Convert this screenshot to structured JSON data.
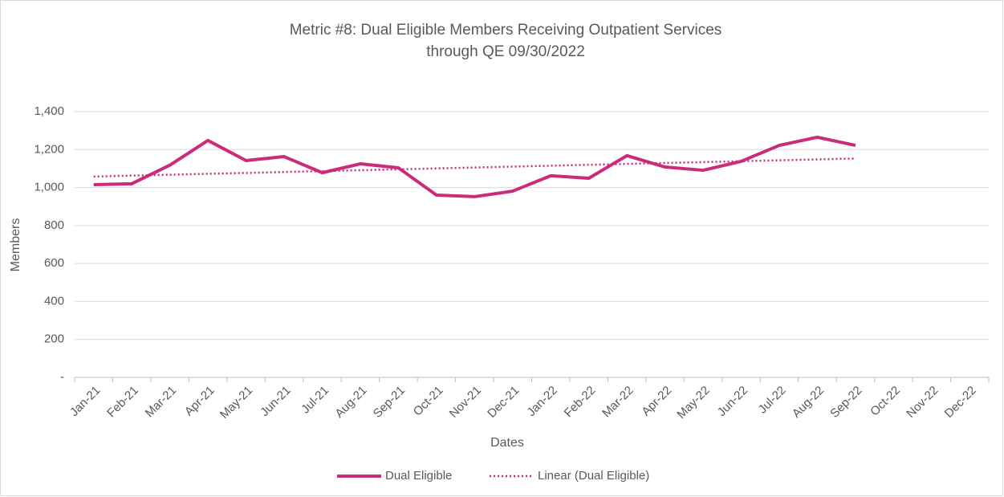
{
  "chart_data": {
    "type": "line",
    "title": "Metric #8: Dual Eligible Members Receiving Outpatient Services",
    "subtitle": "through QE 09/30/2022",
    "x_label": "Dates",
    "y_label": "Members",
    "categories": [
      "Jan-21",
      "Feb-21",
      "Mar-21",
      "Apr-21",
      "May-21",
      "Jun-21",
      "Jul-21",
      "Aug-21",
      "Sep-21",
      "Oct-21",
      "Nov-21",
      "Dec-21",
      "Jan-22",
      "Feb-22",
      "Mar-22",
      "Apr-22",
      "May-22",
      "Jun-22",
      "Jul-22",
      "Aug-22",
      "Sep-22",
      "Oct-22",
      "Nov-22",
      "Dec-22"
    ],
    "series": [
      {
        "name": "Dual Eligible",
        "color": "#cc2a7a",
        "line_style": "solid",
        "values": [
          1015,
          1020,
          1118,
          1248,
          1142,
          1163,
          1078,
          1125,
          1104,
          960,
          952,
          981,
          1062,
          1049,
          1168,
          1108,
          1091,
          1138,
          1222,
          1265,
          1222,
          null,
          null,
          null
        ]
      },
      {
        "name": "Linear (Dual Eligible)",
        "color": "#cc2a7a",
        "line_style": "dotted",
        "values": [
          1058,
          1062.75,
          1067.5,
          1072.25,
          1077,
          1081.75,
          1086.5,
          1091.25,
          1096,
          1100.75,
          1105.5,
          1110.25,
          1115,
          1119.75,
          1124.5,
          1129.25,
          1134,
          1138.75,
          1143.5,
          1148.25,
          1153,
          null,
          null,
          null
        ]
      }
    ],
    "ylim": [
      0,
      1400
    ],
    "yticks": [
      {
        "value": 0,
        "label": "-"
      },
      200,
      400,
      600,
      800,
      {
        "value": 1000,
        "label": "1,000"
      },
      {
        "value": 1200,
        "label": "1,200"
      },
      {
        "value": 1400,
        "label": "1,400"
      }
    ],
    "grid": true,
    "legend": "bottom"
  }
}
